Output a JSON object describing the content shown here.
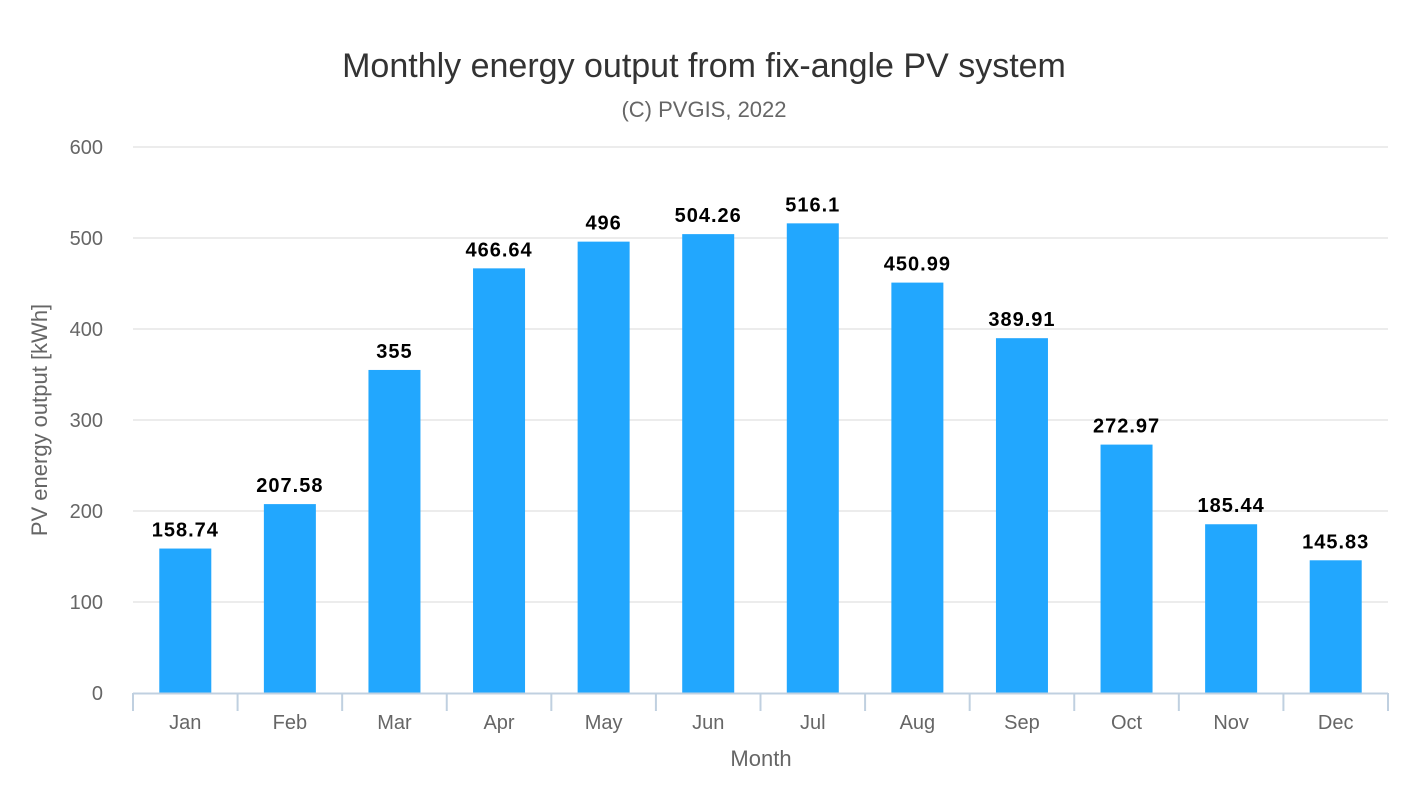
{
  "chart_data": {
    "type": "bar",
    "title": "Monthly energy output from fix-angle PV system",
    "subtitle": "(C) PVGIS, 2022",
    "xlabel": "Month",
    "ylabel": "PV energy output [kWh]",
    "ylim": [
      0,
      600
    ],
    "yticks": [
      0,
      100,
      200,
      300,
      400,
      500,
      600
    ],
    "grid": true,
    "categories": [
      "Jan",
      "Feb",
      "Mar",
      "Apr",
      "May",
      "Jun",
      "Jul",
      "Aug",
      "Sep",
      "Oct",
      "Nov",
      "Dec"
    ],
    "values": [
      158.74,
      207.58,
      355,
      466.64,
      496,
      504.26,
      516.1,
      450.99,
      389.91,
      272.97,
      185.44,
      145.83
    ],
    "data_labels": [
      "158.74",
      "207.58",
      "355",
      "466.64",
      "496",
      "504.26",
      "516.1",
      "450.99",
      "389.91",
      "272.97",
      "185.44",
      "145.83"
    ],
    "colors": {
      "bar": "#22a7fe",
      "grid": "#d9d9d9",
      "axis": "#c0d0e0",
      "label": "#000000",
      "text": "#333333",
      "axis_text": "#666666"
    }
  }
}
